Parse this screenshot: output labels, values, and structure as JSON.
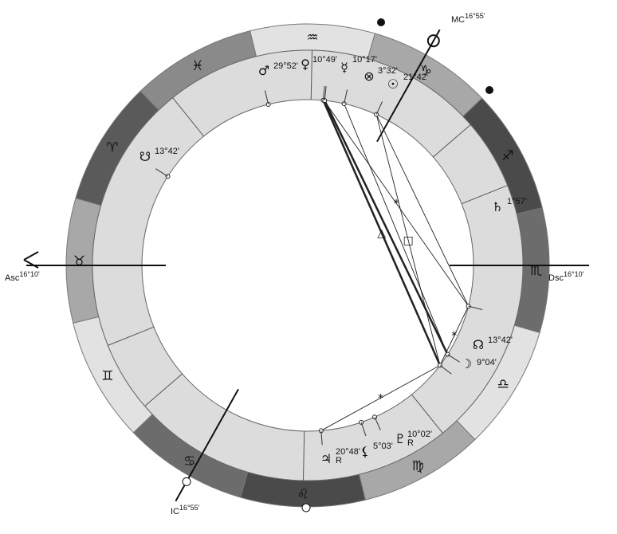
{
  "chart": {
    "ascendant": {
      "label": "Asc",
      "degree": "16°10'",
      "longitude": 46.17
    },
    "descendant": {
      "label": "Dsc",
      "degree": "16°10'",
      "longitude": 226.17
    },
    "midheaven": {
      "label": "MC",
      "degree": "16°55'",
      "longitude": 286.92
    },
    "imum_coeli": {
      "label": "IC",
      "degree": "16°55'",
      "longitude": 106.92
    },
    "signs": [
      {
        "name": "Aries",
        "glyph": "♈",
        "color": "#5a5a5a"
      },
      {
        "name": "Taurus",
        "glyph": "♉",
        "color": "#a8a8a8"
      },
      {
        "name": "Gemini",
        "glyph": "♊",
        "color": "#e2e2e2"
      },
      {
        "name": "Cancer",
        "glyph": "♋",
        "color": "#6c6c6c"
      },
      {
        "name": "Leo",
        "glyph": "♌",
        "color": "#4a4a4a"
      },
      {
        "name": "Virgo",
        "glyph": "♍",
        "color": "#a8a8a8"
      },
      {
        "name": "Libra",
        "glyph": "♎",
        "color": "#e2e2e2"
      },
      {
        "name": "Scorpio",
        "glyph": "♏",
        "color": "#6c6c6c"
      },
      {
        "name": "Sagittarius",
        "glyph": "♐",
        "color": "#4a4a4a"
      },
      {
        "name": "Capricorn",
        "glyph": "♑",
        "color": "#a8a8a8"
      },
      {
        "name": "Aquarius",
        "glyph": "♒",
        "color": "#e2e2e2"
      },
      {
        "name": "Pisces",
        "glyph": "♓",
        "color": "#8a8a8a"
      }
    ],
    "house_cusps": [
      46.17,
      68,
      87,
      106.92,
      135,
      175,
      226.17,
      248,
      267,
      286.92,
      315,
      355
    ],
    "planets": [
      {
        "name": "Mars",
        "glyph": "♂",
        "degree": "29°52'",
        "longitude": 329.9
      },
      {
        "name": "Venus",
        "glyph": "♀",
        "degree": "10°49'",
        "longitude": 310.8
      },
      {
        "name": "Mercury",
        "glyph": "☿",
        "degree": "10°17'",
        "longitude": 310.3
      },
      {
        "name": "Part of Fortune",
        "glyph": "⊗",
        "degree": "3°32'",
        "longitude": 303.5
      },
      {
        "name": "Sun",
        "glyph": "☉",
        "degree": "21°42'",
        "longitude": 291.7
      },
      {
        "name": "Saturn",
        "glyph": "♄",
        "degree": "1°57'",
        "longitude": 211.95
      },
      {
        "name": "North Node",
        "glyph": "☊",
        "degree": "13°42'",
        "longitude": 193.7
      },
      {
        "name": "Moon",
        "glyph": "☽",
        "degree": "9°04'",
        "longitude": 189.1
      },
      {
        "name": "Pluto",
        "glyph": "♇",
        "degree": "10°02'",
        "retrograde": "R",
        "longitude": 160.0
      },
      {
        "name": "Lilith",
        "glyph": "⚸",
        "degree": "5°03'",
        "longitude": 155.0
      },
      {
        "name": "Jupiter",
        "glyph": "♃",
        "degree": "20°48'",
        "retrograde": "R",
        "longitude": 140.8
      },
      {
        "name": "South Node",
        "glyph": "☋",
        "degree": "13°42'",
        "longitude": 13.7
      }
    ],
    "aspects": [
      {
        "from": 310.8,
        "to": 189.1,
        "type": "trine",
        "glyph": "△",
        "weight": "heavy"
      },
      {
        "from": 310.3,
        "to": 193.7,
        "type": "trine",
        "glyph": "",
        "weight": "heavy"
      },
      {
        "from": 291.7,
        "to": 189.1,
        "type": "square",
        "glyph": "□",
        "weight": "light"
      },
      {
        "from": 310.5,
        "to": 211.95,
        "type": "sextile",
        "glyph": "*",
        "weight": "light"
      },
      {
        "from": 211.95,
        "to": 189.1,
        "type": "sextile",
        "glyph": "*",
        "weight": "light"
      },
      {
        "from": 189.1,
        "to": 140.8,
        "type": "sextile",
        "glyph": "*",
        "weight": "light"
      },
      {
        "from": 291.7,
        "to": 211.95,
        "type": "line",
        "glyph": "",
        "weight": "light"
      },
      {
        "from": 303.5,
        "to": 193.7,
        "type": "line",
        "glyph": "",
        "weight": "light"
      }
    ]
  }
}
